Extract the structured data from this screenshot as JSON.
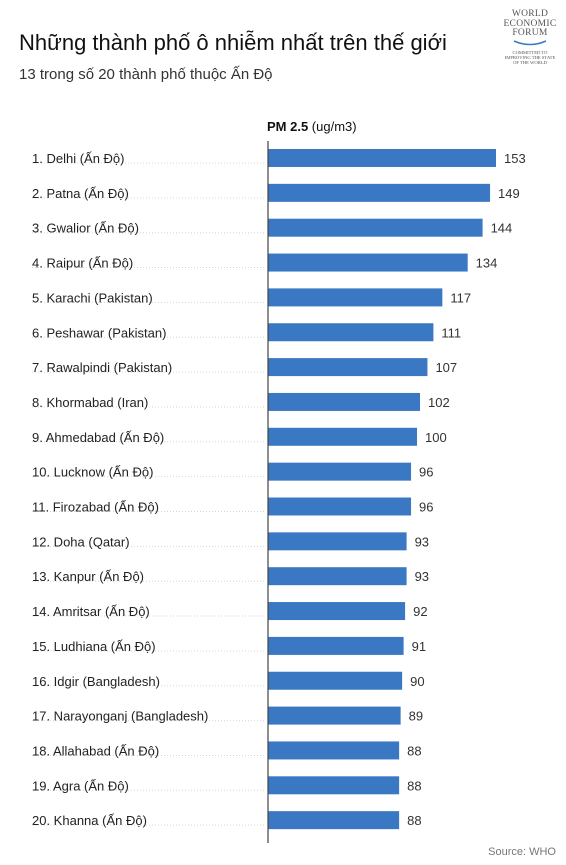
{
  "header": {
    "title": "Những thành phố ô nhiễm nhất trên thế giới",
    "subtitle": "13 trong số 20 thành phố thuộc Ấn Độ"
  },
  "logo": {
    "line1": "WORLD",
    "line2": "ECONOMIC",
    "line3": "FORUM",
    "tagline1": "COMMITTED TO",
    "tagline2": "IMPROVING THE STATE",
    "tagline3": "OF THE WORLD"
  },
  "source": "Source: WHO",
  "colors": {
    "bar": "#3b78c4",
    "gridline": "#d6d6d6",
    "axis": "#444444"
  },
  "chart_data": {
    "type": "bar",
    "orientation": "horizontal",
    "value_header_bold": "PM 2.5",
    "value_header_unit": "(ug/m3)",
    "categories": [
      "1. Delhi (Ấn Độ)",
      "2. Patna (Ấn Độ)",
      "3. Gwalior (Ấn Độ)",
      "4. Raipur (Ấn Độ)",
      "5. Karachi (Pakistan)",
      "6. Peshawar (Pakistan)",
      "7. Rawalpindi (Pakistan)",
      "8. Khormabad (Iran)",
      "9. Ahmedabad (Ấn Độ)",
      "10. Lucknow (Ấn Độ)",
      "11. Firozabad (Ấn Độ)",
      "12. Doha (Qatar)",
      "13. Kanpur (Ấn Độ)",
      "14. Amritsar (Ấn Độ)",
      "15. Ludhiana (Ấn Độ)",
      "16. Idgir (Bangladesh)",
      "17. Narayonganj (Bangladesh)",
      "18. Allahabad (Ấn Độ)",
      "19. Agra (Ấn Độ)",
      "20. Khanna (Ấn Độ)"
    ],
    "values": [
      153,
      149,
      144,
      134,
      117,
      111,
      107,
      102,
      100,
      96,
      96,
      93,
      93,
      92,
      91,
      90,
      89,
      88,
      88,
      88
    ],
    "xlim": [
      0,
      153
    ],
    "data_labels": true,
    "grid": false
  }
}
